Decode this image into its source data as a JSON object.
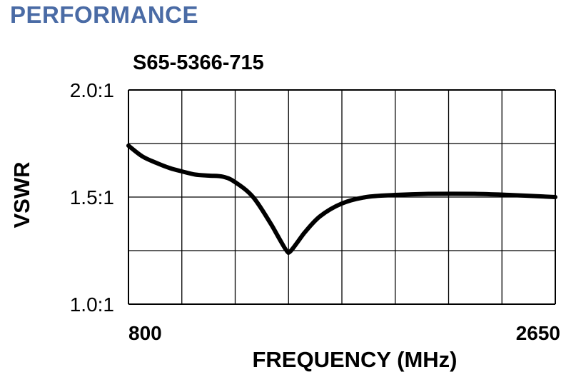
{
  "header": {
    "title": "PERFORMANCE"
  },
  "chart_data": {
    "type": "line",
    "title": "S65-5366-715",
    "xlabel": "FREQUENCY (MHz)",
    "ylabel": "VSWR",
    "xlim": [
      800,
      2650
    ],
    "ylim": [
      1.0,
      2.0
    ],
    "x_tick_labels": [
      "800",
      "2650"
    ],
    "y_ticks": [
      {
        "value": 2.0,
        "label": "2.0:1"
      },
      {
        "value": 1.5,
        "label": "1.5:1"
      },
      {
        "value": 1.0,
        "label": "1.0:1"
      }
    ],
    "x_grid_divisions": 8,
    "y_grid_divisions": 4,
    "grid": true,
    "series": [
      {
        "x": [
          800,
          860,
          920,
          980,
          1031,
          1090,
          1150,
          1210,
          1262,
          1340,
          1420,
          1493,
          1560,
          1630,
          1725,
          1830,
          1956,
          2100,
          2300,
          2450,
          2650
        ],
        "values": [
          1.74,
          1.69,
          1.66,
          1.635,
          1.62,
          1.605,
          1.6,
          1.595,
          1.57,
          1.5,
          1.37,
          1.24,
          1.33,
          1.41,
          1.47,
          1.5,
          1.51,
          1.515,
          1.515,
          1.51,
          1.5
        ]
      }
    ]
  },
  "colors": {
    "title": "#4a6ba5",
    "line": "#000000",
    "grid": "#000000"
  }
}
